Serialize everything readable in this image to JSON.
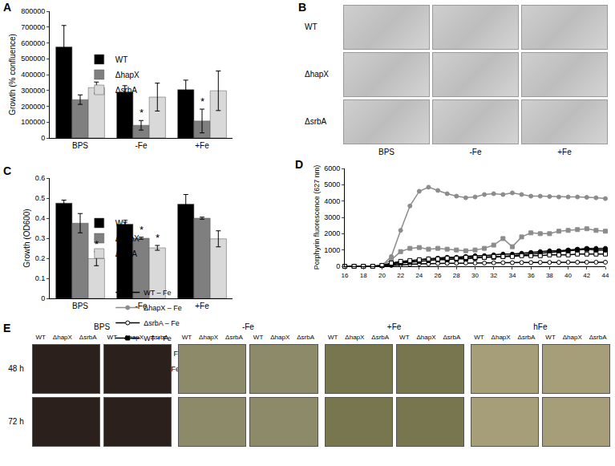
{
  "chart_data": [
    {
      "label": "A",
      "type": "bar",
      "y_label": "Growth (% confluence)",
      "categories": [
        "BPS",
        "-Fe",
        "+Fe"
      ],
      "series": [
        {
          "name": "WT",
          "color": "#000000",
          "values": [
            575000,
            290000,
            305000
          ],
          "errors": [
            135000,
            40000,
            60000
          ]
        },
        {
          "name": "ΔhapX",
          "color": "#7f7f7f",
          "values": [
            242000,
            80000,
            107000
          ],
          "errors": [
            30000,
            30000,
            75000
          ]
        },
        {
          "name": "ΔsrbA",
          "color": "#d9d9d9",
          "values": [
            318000,
            258000,
            298000
          ],
          "errors": [
            35000,
            88000,
            125000
          ]
        }
      ],
      "ylim": [
        0,
        800000
      ],
      "yticks": [
        0,
        100000,
        200000,
        300000,
        400000,
        500000,
        600000,
        700000,
        800000
      ],
      "grid": false,
      "legend": "right",
      "annotations": [
        {
          "category": "-Fe",
          "series": "ΔhapX",
          "text": "*"
        },
        {
          "category": "+Fe",
          "series": "ΔhapX",
          "text": "*"
        }
      ]
    },
    {
      "label": "C",
      "type": "bar",
      "y_label": "Growth (OD600)",
      "categories": [
        "BPS",
        "-Fe",
        "+Fe"
      ],
      "series": [
        {
          "name": "WT",
          "color": "#000000",
          "values": [
            0.475,
            0.37,
            0.47
          ],
          "errors": [
            0.015,
            0.01,
            0.048
          ]
        },
        {
          "name": "ΔhapX",
          "color": "#7f7f7f",
          "values": [
            0.375,
            0.3,
            0.4
          ],
          "errors": [
            0.048,
            0.005,
            0.005
          ]
        },
        {
          "name": "ΔsrbA",
          "color": "#d9d9d9",
          "values": [
            0.198,
            0.252,
            0.297
          ],
          "errors": [
            0.035,
            0.012,
            0.04
          ]
        }
      ],
      "ylim": [
        0,
        0.6
      ],
      "yticks": [
        0,
        0.1,
        0.2,
        0.3,
        0.4,
        0.5,
        0.6
      ],
      "grid": false,
      "legend": "right",
      "annotations": [
        {
          "category": "BPS",
          "series": "ΔsrbA",
          "text": "*"
        },
        {
          "category": "-Fe",
          "series": "ΔhapX",
          "text": "*"
        },
        {
          "category": "-Fe",
          "series": "ΔsrbA",
          "text": "*"
        }
      ]
    },
    {
      "label": "D",
      "type": "line",
      "y_label": "Porphyrin fluorescence (627 nm)",
      "x": [
        16,
        17,
        18,
        19,
        20,
        21,
        22,
        23,
        24,
        25,
        26,
        27,
        28,
        29,
        30,
        31,
        32,
        33,
        34,
        35,
        36,
        37,
        38,
        39,
        40,
        41,
        42,
        43,
        44
      ],
      "series": [
        {
          "name": "WT – Fe",
          "color": "#000000",
          "marker": "circle",
          "values": [
            0,
            0,
            0,
            0,
            50,
            150,
            250,
            300,
            400,
            450,
            500,
            550,
            550,
            600,
            650,
            650,
            700,
            750,
            750,
            800,
            850,
            900,
            950,
            950,
            1000,
            1050,
            1100,
            1100,
            1100
          ]
        },
        {
          "name": "ΔhapX – Fe",
          "color": "#8c8c8c",
          "marker": "circle",
          "values": [
            0,
            0,
            0,
            0,
            50,
            600,
            2200,
            3700,
            4600,
            4850,
            4650,
            4450,
            4300,
            4200,
            4250,
            4400,
            4450,
            4400,
            4500,
            4400,
            4300,
            4300,
            4280,
            4250,
            4250,
            4250,
            4230,
            4200,
            4150
          ]
        },
        {
          "name": "ΔsrbA – Fe",
          "color": "#ffffff",
          "marker": "circle",
          "values": [
            0,
            0,
            0,
            0,
            20,
            50,
            100,
            120,
            150,
            150,
            170,
            180,
            190,
            200,
            200,
            200,
            210,
            220,
            220,
            230,
            230,
            240,
            240,
            240,
            250,
            250,
            250,
            250,
            250
          ]
        },
        {
          "name": "WT + Fe",
          "color": "#000000",
          "marker": "square",
          "values": [
            0,
            0,
            0,
            0,
            50,
            100,
            200,
            250,
            300,
            350,
            400,
            400,
            450,
            450,
            500,
            550,
            550,
            600,
            650,
            700,
            750,
            800,
            850,
            900,
            950,
            1000,
            1050,
            1000,
            1000
          ]
        },
        {
          "name": "ΔhapX + Fe",
          "color": "#8c8c8c",
          "marker": "square",
          "values": [
            0,
            0,
            0,
            0,
            50,
            400,
            900,
            1100,
            1150,
            1050,
            1100,
            1050,
            1000,
            950,
            1000,
            1100,
            1300,
            1700,
            1200,
            1800,
            2050,
            2000,
            2000,
            2150,
            2200,
            2250,
            2300,
            2200,
            2150
          ]
        },
        {
          "name": "ΔsrbA + Fe",
          "color": "#ffffff",
          "marker": "square",
          "values": [
            0,
            0,
            0,
            0,
            50,
            200,
            300,
            350,
            400,
            450,
            450,
            500,
            500,
            550,
            550,
            550,
            600,
            600,
            600,
            650,
            650,
            650,
            700,
            700,
            700,
            750,
            750,
            750,
            750
          ]
        }
      ],
      "xlim": [
        16,
        44
      ],
      "xticks": [
        16,
        18,
        20,
        22,
        24,
        26,
        28,
        30,
        32,
        34,
        36,
        38,
        40,
        42,
        44
      ],
      "ylim": [
        0,
        6000
      ],
      "yticks": [
        0,
        1000,
        2000,
        3000,
        4000,
        5000,
        6000
      ],
      "grid": false,
      "legend": "bottom"
    }
  ],
  "images": {
    "B": {
      "label": "B",
      "rows": [
        "WT",
        "ΔhapX",
        "ΔsrbA"
      ],
      "columns": [
        "BPS",
        "-Fe",
        "+Fe"
      ]
    },
    "E": {
      "label": "E",
      "groups": [
        "BPS",
        "-Fe",
        "+Fe",
        "hFe"
      ],
      "strains": [
        "WT",
        "ΔhapX",
        "ΔsrbA"
      ],
      "plates_per_group": 2,
      "rows": [
        "48 h",
        "72 h"
      ]
    }
  }
}
